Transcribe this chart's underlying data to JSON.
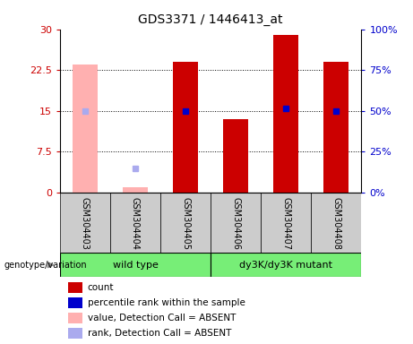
{
  "title": "GDS3371 / 1446413_at",
  "samples": [
    "GSM304403",
    "GSM304404",
    "GSM304405",
    "GSM304406",
    "GSM304407",
    "GSM304408"
  ],
  "count_values": [
    null,
    null,
    24.0,
    13.5,
    29.0,
    24.0
  ],
  "count_absent": [
    23.5,
    1.0,
    null,
    null,
    null,
    null
  ],
  "rank_values": [
    null,
    null,
    15.0,
    null,
    15.5,
    15.0
  ],
  "rank_absent": [
    15.0,
    4.5,
    null,
    null,
    null,
    null
  ],
  "ylim": [
    0,
    30
  ],
  "yticks": [
    0,
    7.5,
    15,
    22.5,
    30
  ],
  "ytick_labels_left": [
    "0",
    "7.5",
    "15",
    "22.5",
    "30"
  ],
  "ytick_labels_right": [
    "0%",
    "25%",
    "50%",
    "75%",
    "100%"
  ],
  "bar_color_red": "#cc0000",
  "bar_color_pink": "#ffb0b0",
  "dot_color_blue": "#0000cc",
  "dot_color_lightblue": "#aaaaee",
  "group_info": [
    {
      "name": "wild type",
      "start": 0,
      "end": 3,
      "color": "#77ee77"
    },
    {
      "name": "dy3K/dy3K mutant",
      "start": 3,
      "end": 6,
      "color": "#77ee77"
    }
  ],
  "label_bg": "#cccccc",
  "legend_items": [
    {
      "label": "count",
      "color": "#cc0000"
    },
    {
      "label": "percentile rank within the sample",
      "color": "#0000cc"
    },
    {
      "label": "value, Detection Call = ABSENT",
      "color": "#ffb0b0"
    },
    {
      "label": "rank, Detection Call = ABSENT",
      "color": "#aaaaee"
    }
  ],
  "geno_label": "genotype/variation",
  "bar_width": 0.5
}
